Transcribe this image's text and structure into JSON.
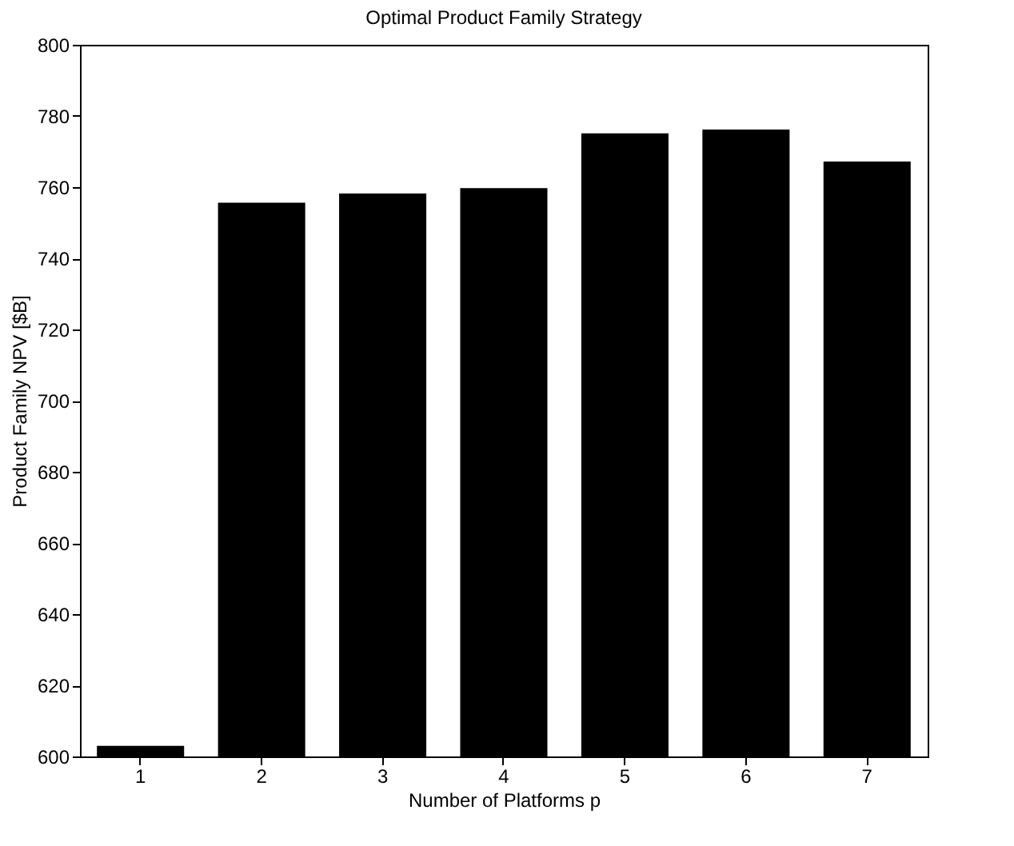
{
  "chart_data": {
    "type": "bar",
    "title": "Optimal Product Family Strategy",
    "xlabel": "Number of Platforms p",
    "ylabel": "Product Family NPV [$B]",
    "categories": [
      "1",
      "2",
      "3",
      "4",
      "5",
      "6",
      "7"
    ],
    "values": [
      603,
      755.6,
      758.2,
      759.7,
      775.1,
      776.2,
      767.2
    ],
    "color": "#000000",
    "ylim": [
      600,
      800
    ],
    "yticks": [
      600,
      620,
      640,
      660,
      680,
      700,
      720,
      740,
      760,
      780,
      800
    ],
    "grid": false
  }
}
